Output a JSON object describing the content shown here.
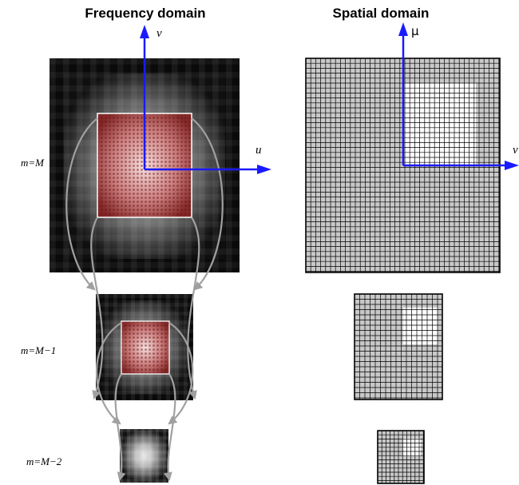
{
  "titles": {
    "frequency": "Frequency domain",
    "spatial": "Spatial domain"
  },
  "axes": {
    "frequency_vertical": "v",
    "frequency_horizontal": "u",
    "spatial_vertical": "μ",
    "spatial_horizontal": "v"
  },
  "levels": [
    "m=M",
    "m=M−1",
    "m=M−2"
  ],
  "colors": {
    "axis_arrow": "#1a1aff",
    "flow_arrow": "#a0a0a0",
    "grid_fill": "#c8c8c8",
    "highlight": "#cc3b3b"
  }
}
